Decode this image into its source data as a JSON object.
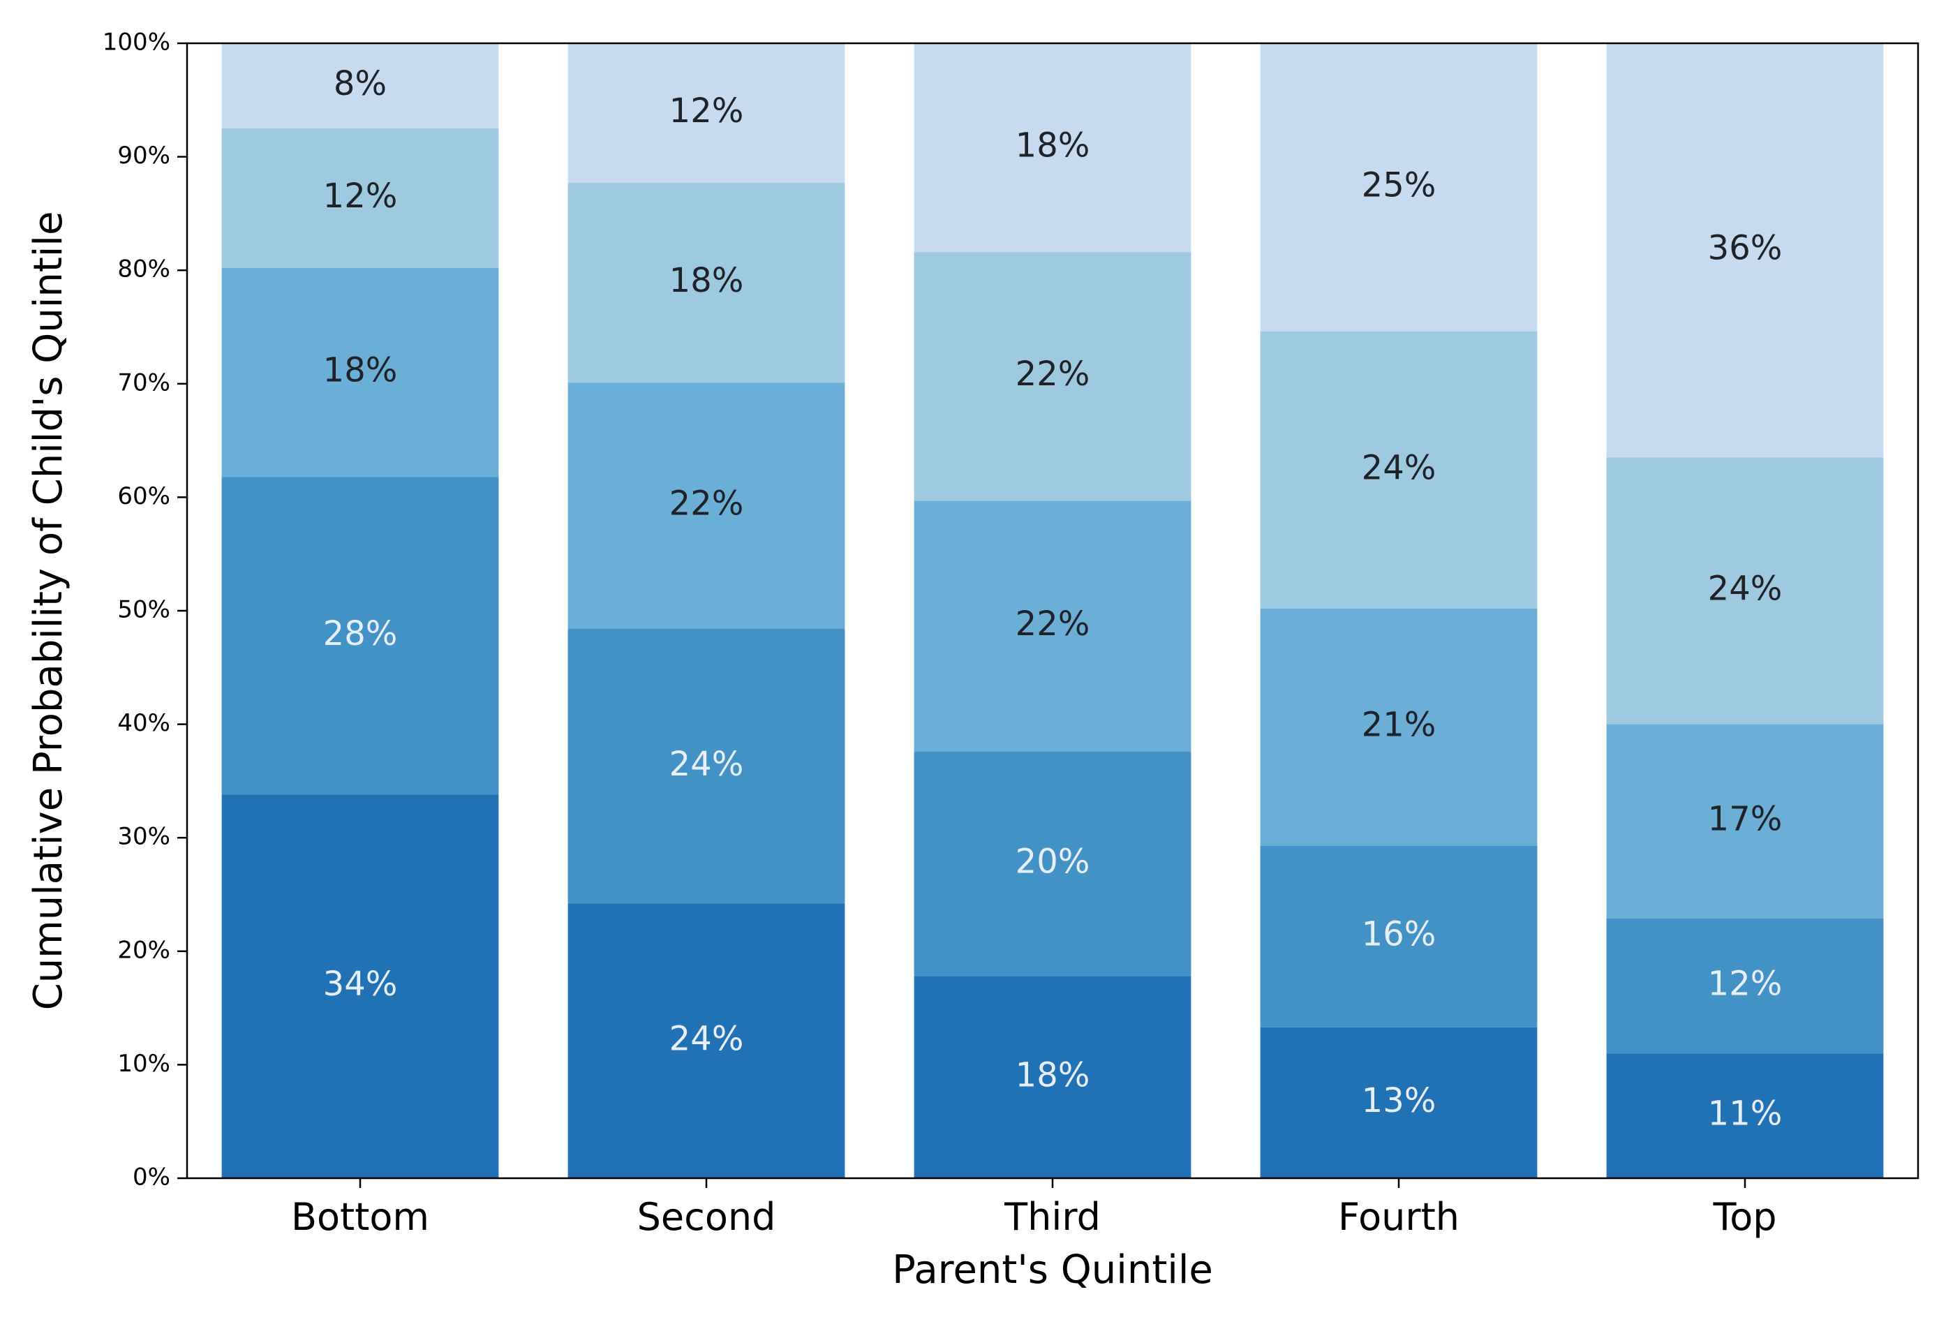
{
  "chart_data": {
    "type": "bar",
    "stacked": true,
    "title": "",
    "xlabel": "Parent's Quintile",
    "ylabel": "Cumulative Probability of Child's Quintile",
    "ylim": [
      0,
      100
    ],
    "y_ticks": [
      "0%",
      "10%",
      "20%",
      "30%",
      "40%",
      "50%",
      "60%",
      "70%",
      "80%",
      "90%",
      "100%"
    ],
    "categories": [
      "Bottom",
      "Second",
      "Third",
      "Fourth",
      "Top"
    ],
    "grid": false,
    "legend": "none",
    "series": [
      {
        "values": [
          33.8,
          24.2,
          17.8,
          13.3,
          11.0
        ],
        "labels": [
          "34%",
          "24%",
          "18%",
          "13%",
          "11%"
        ],
        "color": "#2171b5",
        "label_color": "#e8eef7"
      },
      {
        "values": [
          28.0,
          24.2,
          19.8,
          16.0,
          11.9
        ],
        "labels": [
          "28%",
          "24%",
          "20%",
          "16%",
          "12%"
        ],
        "color": "#4292c6",
        "label_color": "#e8eef7"
      },
      {
        "values": [
          18.4,
          21.7,
          22.1,
          20.9,
          17.1
        ],
        "labels": [
          "18%",
          "22%",
          "22%",
          "21%",
          "17%"
        ],
        "color": "#6baed6",
        "label_color": "#1f2329"
      },
      {
        "values": [
          12.3,
          17.6,
          21.9,
          24.4,
          23.5
        ],
        "labels": [
          "12%",
          "18%",
          "22%",
          "24%",
          "24%"
        ],
        "color": "#9ecae1",
        "label_color": "#1f2329"
      },
      {
        "values": [
          7.5,
          12.3,
          18.4,
          25.4,
          36.5
        ],
        "labels": [
          "8%",
          "12%",
          "18%",
          "25%",
          "36%"
        ],
        "color": "#c6dbef",
        "label_color": "#1f2329"
      }
    ]
  }
}
